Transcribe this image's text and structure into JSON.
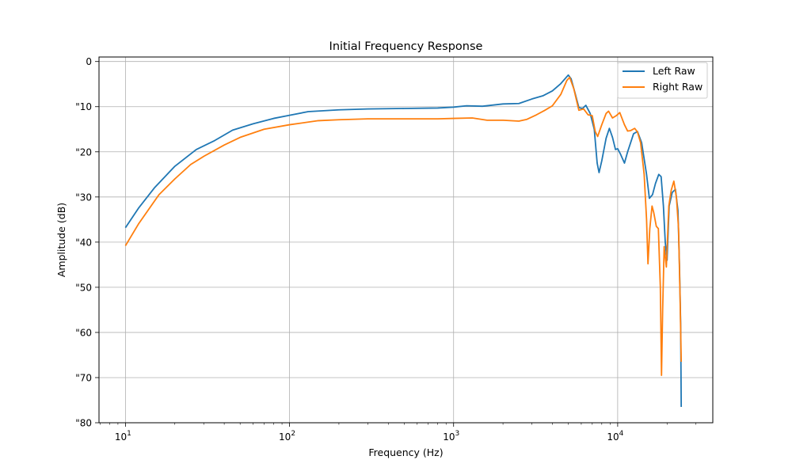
{
  "chart_data": {
    "type": "line",
    "title": "Initial Frequency Response",
    "xlabel": "Frequency (Hz)",
    "ylabel": "Amplitude (dB)",
    "xscale": "log",
    "xlim": [
      6.9,
      38000
    ],
    "ylim": [
      -80,
      1
    ],
    "x_ticks": [
      {
        "value": 10,
        "base": "10",
        "exp": "1"
      },
      {
        "value": 100,
        "base": "10",
        "exp": "2"
      },
      {
        "value": 1000,
        "base": "10",
        "exp": "3"
      },
      {
        "value": 10000,
        "base": "10",
        "exp": "4"
      }
    ],
    "y_ticks": [
      {
        "value": 0,
        "label": "0"
      },
      {
        "value": -10,
        "label": "\"10"
      },
      {
        "value": -20,
        "label": "\"20"
      },
      {
        "value": -30,
        "label": "\"30"
      },
      {
        "value": -40,
        "label": "\"40"
      },
      {
        "value": -50,
        "label": "\"50"
      },
      {
        "value": -60,
        "label": "\"60"
      },
      {
        "value": -70,
        "label": "\"70"
      },
      {
        "value": -80,
        "label": "\"80"
      }
    ],
    "grid": true,
    "legend_position": "top-right",
    "series": [
      {
        "name": "Left Raw",
        "color": "#1f77b4",
        "points": [
          [
            10,
            -36.8
          ],
          [
            12,
            -32.5
          ],
          [
            15,
            -28.0
          ],
          [
            20,
            -23.2
          ],
          [
            27,
            -19.5
          ],
          [
            35,
            -17.5
          ],
          [
            45,
            -15.2
          ],
          [
            60,
            -13.8
          ],
          [
            80,
            -12.6
          ],
          [
            100,
            -11.9
          ],
          [
            130,
            -11.1
          ],
          [
            200,
            -10.7
          ],
          [
            300,
            -10.5
          ],
          [
            500,
            -10.4
          ],
          [
            800,
            -10.3
          ],
          [
            1000,
            -10.1
          ],
          [
            1200,
            -9.8
          ],
          [
            1500,
            -9.9
          ],
          [
            2000,
            -9.4
          ],
          [
            2500,
            -9.3
          ],
          [
            3000,
            -8.3
          ],
          [
            3500,
            -7.6
          ],
          [
            4000,
            -6.5
          ],
          [
            4500,
            -4.9
          ],
          [
            5000,
            -3.0
          ],
          [
            5200,
            -3.8
          ],
          [
            5500,
            -7.0
          ],
          [
            5800,
            -10.2
          ],
          [
            6100,
            -10.4
          ],
          [
            6400,
            -9.7
          ],
          [
            6800,
            -11.5
          ],
          [
            7200,
            -15.0
          ],
          [
            7500,
            -22.5
          ],
          [
            7700,
            -24.6
          ],
          [
            8000,
            -22.0
          ],
          [
            8500,
            -17.0
          ],
          [
            8900,
            -14.8
          ],
          [
            9300,
            -16.8
          ],
          [
            9700,
            -19.5
          ],
          [
            10000,
            -19.3
          ],
          [
            10400,
            -20.5
          ],
          [
            11000,
            -22.5
          ],
          [
            11500,
            -20.0
          ],
          [
            12500,
            -16.0
          ],
          [
            13200,
            -15.5
          ],
          [
            14000,
            -18.0
          ],
          [
            15000,
            -25.0
          ],
          [
            15600,
            -30.3
          ],
          [
            16300,
            -29.5
          ],
          [
            17000,
            -27.0
          ],
          [
            17800,
            -25.0
          ],
          [
            18400,
            -25.5
          ],
          [
            19000,
            -32.0
          ],
          [
            19500,
            -40.0
          ],
          [
            20000,
            -44.0
          ],
          [
            20600,
            -32.0
          ],
          [
            21500,
            -29.0
          ],
          [
            22500,
            -28.3
          ],
          [
            23300,
            -33.0
          ],
          [
            23800,
            -45.0
          ],
          [
            24200,
            -58.0
          ],
          [
            24400,
            -76.5
          ]
        ]
      },
      {
        "name": "Right Raw",
        "color": "#ff7f0e",
        "points": [
          [
            10,
            -40.8
          ],
          [
            12,
            -36.0
          ],
          [
            16,
            -29.5
          ],
          [
            20,
            -26.0
          ],
          [
            25,
            -22.8
          ],
          [
            30,
            -21.0
          ],
          [
            40,
            -18.5
          ],
          [
            50,
            -16.8
          ],
          [
            70,
            -15.0
          ],
          [
            100,
            -14.0
          ],
          [
            150,
            -13.1
          ],
          [
            200,
            -12.9
          ],
          [
            300,
            -12.7
          ],
          [
            500,
            -12.7
          ],
          [
            800,
            -12.7
          ],
          [
            1000,
            -12.6
          ],
          [
            1300,
            -12.5
          ],
          [
            1600,
            -13.0
          ],
          [
            2000,
            -13.0
          ],
          [
            2500,
            -13.2
          ],
          [
            2800,
            -12.8
          ],
          [
            3200,
            -11.8
          ],
          [
            3600,
            -10.8
          ],
          [
            4000,
            -9.8
          ],
          [
            4500,
            -7.3
          ],
          [
            4900,
            -4.2
          ],
          [
            5100,
            -3.5
          ],
          [
            5400,
            -6.0
          ],
          [
            5800,
            -10.8
          ],
          [
            6200,
            -10.5
          ],
          [
            6600,
            -11.8
          ],
          [
            7000,
            -12.0
          ],
          [
            7300,
            -15.5
          ],
          [
            7550,
            -16.6
          ],
          [
            8000,
            -14.0
          ],
          [
            8500,
            -11.5
          ],
          [
            8800,
            -11.0
          ],
          [
            9300,
            -12.5
          ],
          [
            9800,
            -12.0
          ],
          [
            10300,
            -11.3
          ],
          [
            11000,
            -14.0
          ],
          [
            11500,
            -15.4
          ],
          [
            12000,
            -15.3
          ],
          [
            12700,
            -14.8
          ],
          [
            13200,
            -15.6
          ],
          [
            13800,
            -18.0
          ],
          [
            14500,
            -25.0
          ],
          [
            15000,
            -35.0
          ],
          [
            15300,
            -44.8
          ],
          [
            15700,
            -37.0
          ],
          [
            16200,
            -32.0
          ],
          [
            16600,
            -33.5
          ],
          [
            17200,
            -36.5
          ],
          [
            17700,
            -37.0
          ],
          [
            18200,
            -50.0
          ],
          [
            18500,
            -69.5
          ],
          [
            18800,
            -55.0
          ],
          [
            19200,
            -41.0
          ],
          [
            19800,
            -45.5
          ],
          [
            20500,
            -32.0
          ],
          [
            21200,
            -28.5
          ],
          [
            22000,
            -26.5
          ],
          [
            22800,
            -30.0
          ],
          [
            23500,
            -37.0
          ],
          [
            24000,
            -52.0
          ],
          [
            24400,
            -66.5
          ]
        ]
      }
    ]
  }
}
